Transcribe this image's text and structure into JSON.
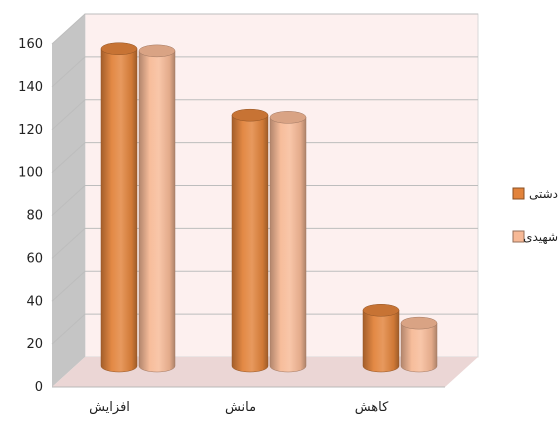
{
  "chart_data": {
    "type": "bar",
    "style": "3d-cylinder",
    "categories": [
      "افزایش",
      "مانش",
      "کاهش"
    ],
    "series": [
      {
        "name": "دشتی",
        "values": [
          148,
          117,
          26
        ],
        "color": "#E2833B"
      },
      {
        "name": "شهیدی",
        "values": [
          147,
          116,
          20
        ],
        "color": "#F7B996"
      }
    ],
    "yticks": [
      "0",
      "20",
      "40",
      "60",
      "80",
      "100",
      "120",
      "140",
      "160"
    ],
    "ylim": [
      0,
      160
    ],
    "grid": true,
    "legend_position": "right",
    "colors": {
      "back_wall": "#FDF0EF",
      "floor": "#EBD6D5",
      "side_wall": "#C5C5C5",
      "gridline": "#BDBDBD"
    }
  }
}
